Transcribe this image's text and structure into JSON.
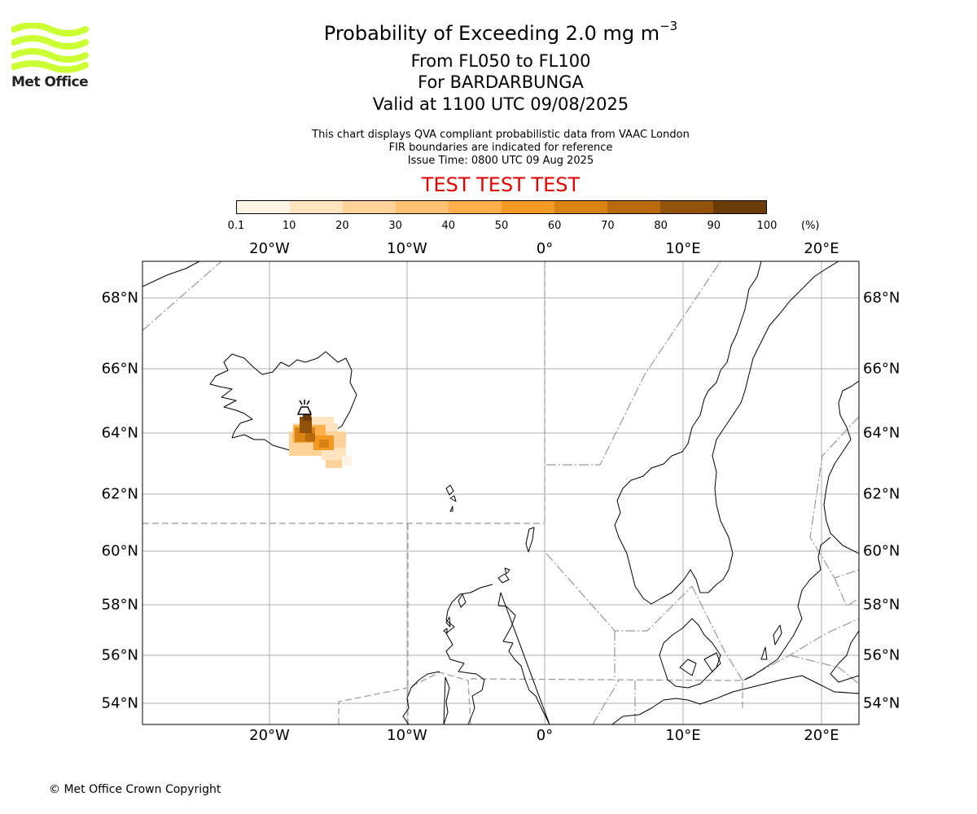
{
  "header": {
    "title_main": "Probability of Exceeding 2.0 mg m",
    "title_sup": "−3",
    "levels": "From FL050 to FL100",
    "volcano": "For BARDARBUNGA",
    "valid": "Valid at 1100 UTC 09/08/2025",
    "note1": "This chart displays QVA compliant probabilistic data from VAAC London",
    "note2": "FIR boundaries are indicated for reference",
    "note3": "Issue Time: 0800 UTC 09 Aug 2025",
    "test_banner": "TEST TEST TEST",
    "test_color": "#e00000"
  },
  "logo": {
    "text": "Met Office",
    "accent": "#ccff33"
  },
  "legend": {
    "ticks": [
      "0.1",
      "10",
      "20",
      "30",
      "40",
      "50",
      "60",
      "70",
      "80",
      "90",
      "100"
    ],
    "unit": "(%)",
    "colors": [
      "#fff5e6",
      "#ffe4bf",
      "#ffd399",
      "#ffc273",
      "#ffb04d",
      "#f49a24",
      "#d98412",
      "#b86a0c",
      "#935209",
      "#6b3c07"
    ]
  },
  "map": {
    "lon_labels": [
      "20°W",
      "10°W",
      "0°",
      "10°E",
      "20°E"
    ],
    "lat_labels": [
      "68°N",
      "66°N",
      "64°N",
      "62°N",
      "60°N",
      "58°N",
      "56°N",
      "54°N"
    ]
  },
  "copyright": "© Met Office Crown Copyright"
}
